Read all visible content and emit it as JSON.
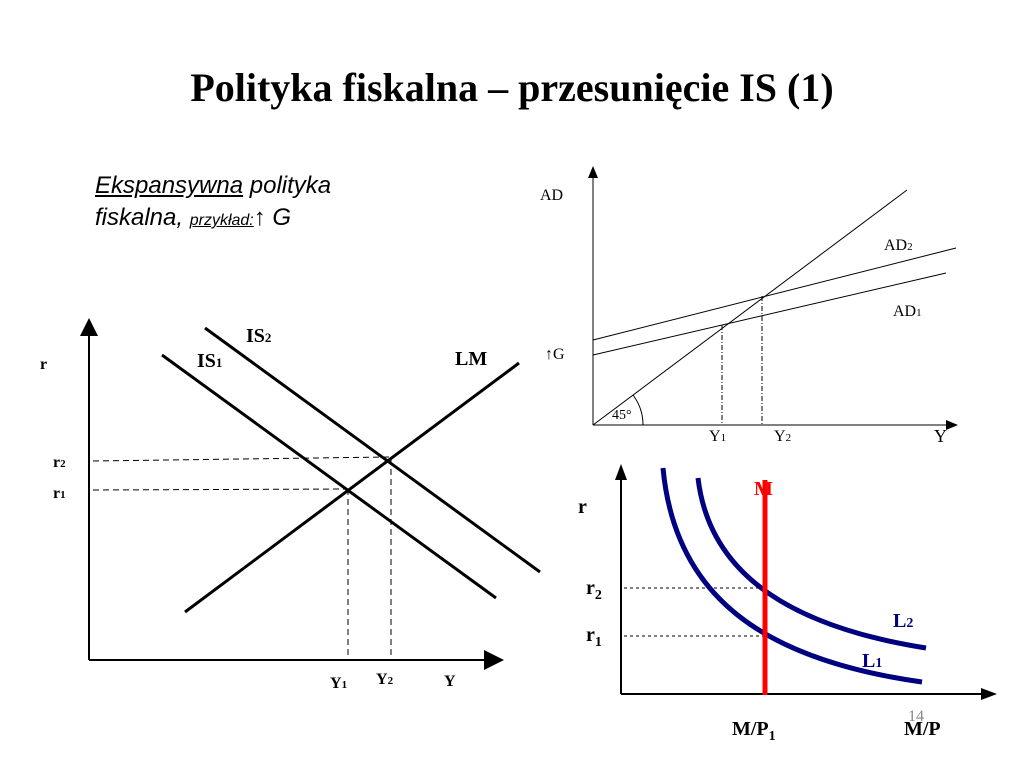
{
  "title": "Polityka fiskalna – przesunięcie IS (1)",
  "intro": {
    "part1": "Ekspansywna",
    "part2": " polityka",
    "part3": "fiskalna, ",
    "example": "przykład:",
    "part4": "↑ G"
  },
  "slide_number": "14",
  "islm": {
    "y_axis_label": "r",
    "x_axis_label": "Y",
    "r2_label": "r",
    "r2_sub": "2",
    "r1_label": "r",
    "r1_sub": "1",
    "y1_label": "Y",
    "y1_sub": "1",
    "y2_label": "Y",
    "y2_sub": "2",
    "is1_label": "IS",
    "is1_sub": "1",
    "is2_label": "IS",
    "is2_sub": "2",
    "lm_label": "LM"
  },
  "cross": {
    "y_axis_label": "AD",
    "x_axis_label": "Y",
    "ad2_label": "AD",
    "ad2_sub": "2",
    "ad1_label": "AD",
    "ad1_sub": "1",
    "g_label": "↑G",
    "angle_label": "45°",
    "y1_label": "Y",
    "y1_sub": "1",
    "y2_label": "Y",
    "y2_sub": "2"
  },
  "money": {
    "y_axis_label": "r",
    "x_axis_label": "M/P",
    "m_label": "M",
    "m_color": "#ff0000",
    "curve_color": "#000080",
    "r2_label": "r",
    "r2_sub": "2",
    "r1_label": "r",
    "r1_sub": "1",
    "l2_label": "L",
    "l2_sub": "2",
    "l1_label": "L",
    "l1_sub": "1",
    "mp1_label": "M/P",
    "mp1_sub": "1"
  }
}
